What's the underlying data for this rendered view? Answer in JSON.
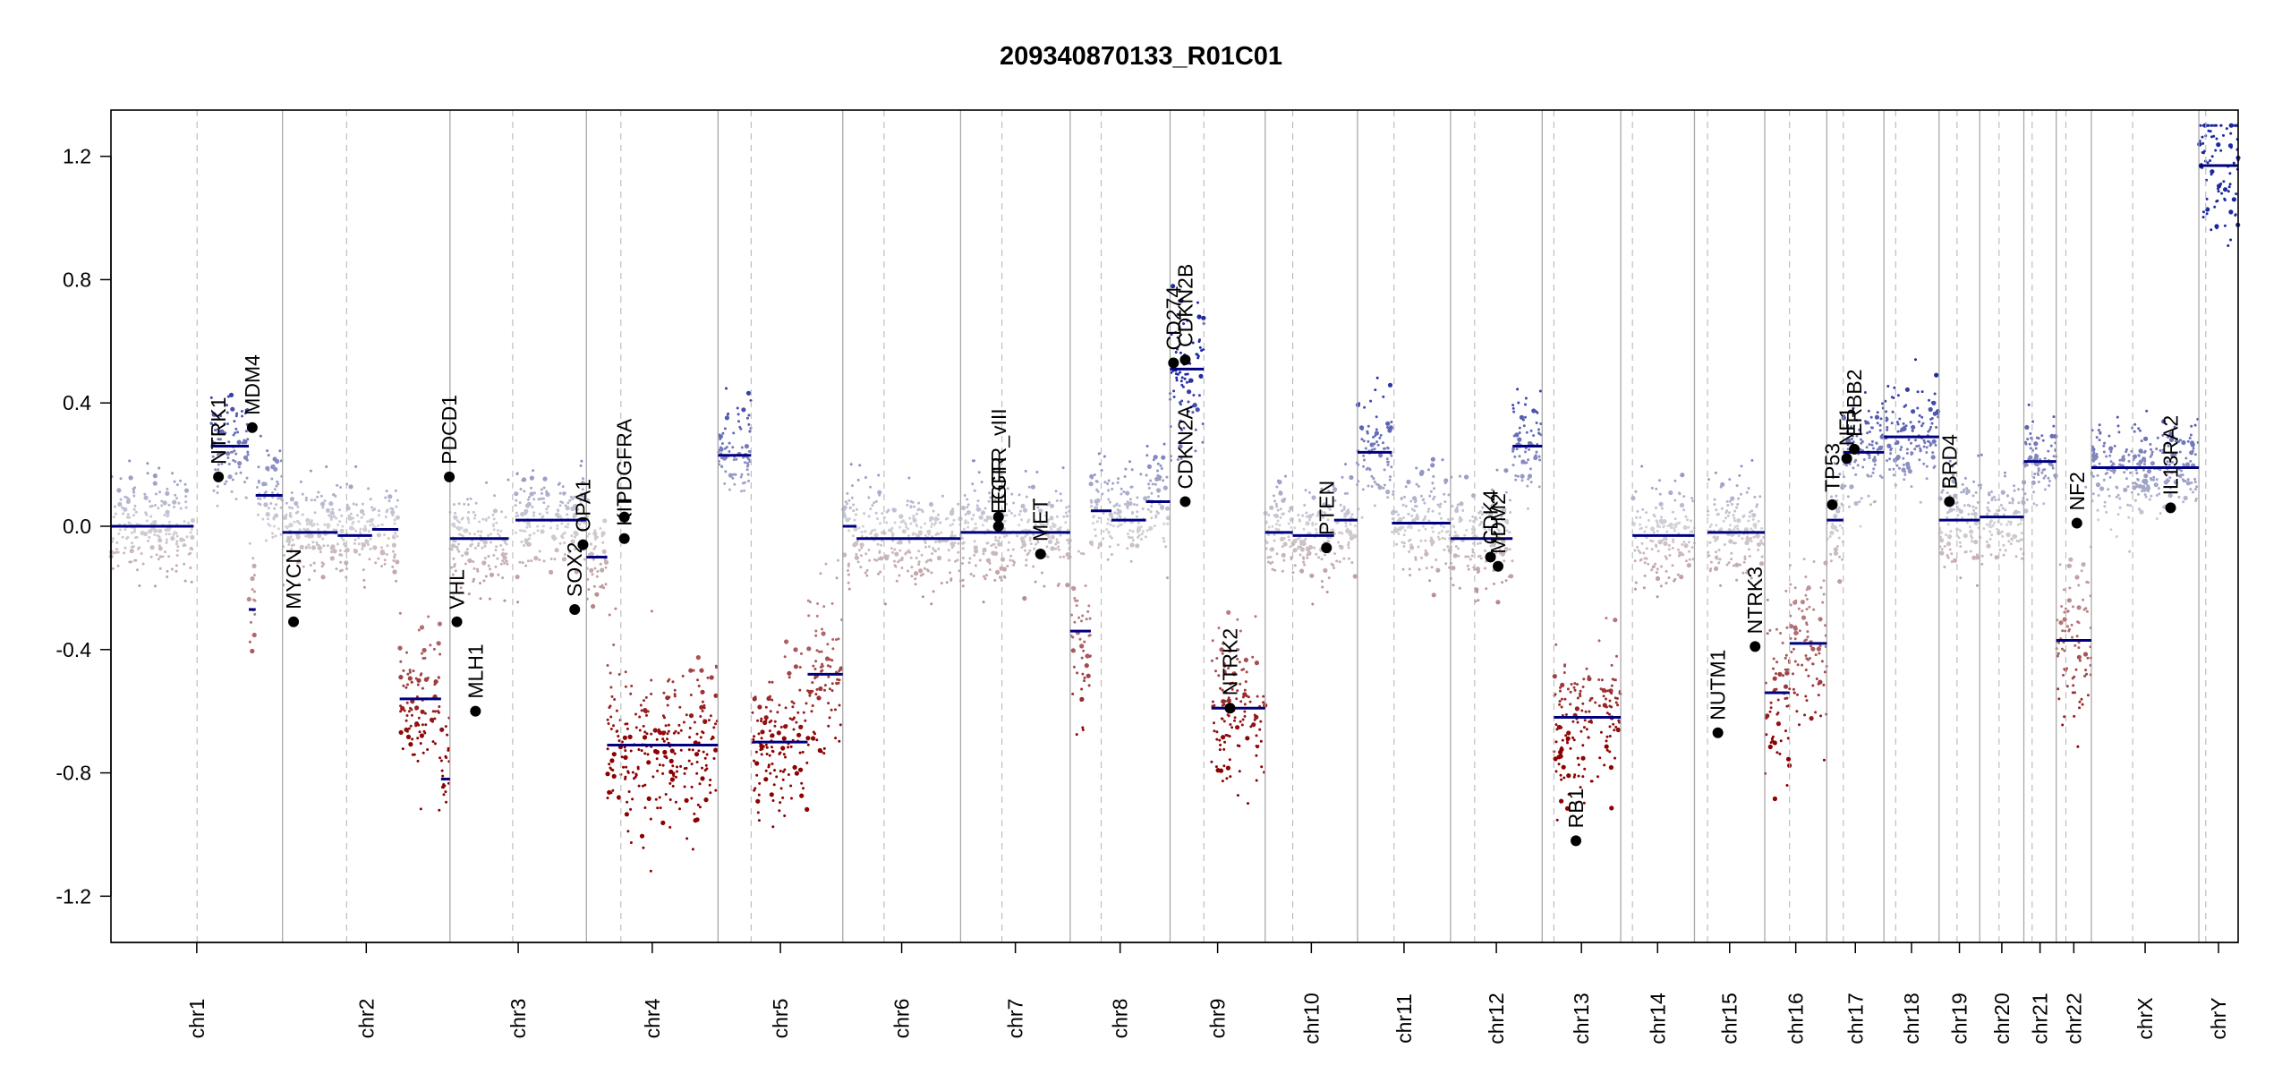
{
  "chart_data": {
    "type": "scatter",
    "title": "209340870133_R01C01",
    "xlabel": "",
    "ylabel": "",
    "ylim": [
      -1.35,
      1.35
    ],
    "y_ticks": [
      {
        "value": 1.2,
        "label": "1.2"
      },
      {
        "value": 0.8,
        "label": "0.8"
      },
      {
        "value": 0.4,
        "label": "0.4"
      },
      {
        "value": 0.0,
        "label": "0.0"
      },
      {
        "value": -0.4,
        "label": "-0.4"
      },
      {
        "value": -0.8,
        "label": "-0.8"
      },
      {
        "value": -1.2,
        "label": "-1.2"
      }
    ],
    "chromosomes": [
      {
        "name": "chr1",
        "length": 249,
        "centromere": 125
      },
      {
        "name": "chr2",
        "length": 243,
        "centromere": 93
      },
      {
        "name": "chr3",
        "length": 198,
        "centromere": 91
      },
      {
        "name": "chr4",
        "length": 191,
        "centromere": 50
      },
      {
        "name": "chr5",
        "length": 181,
        "centromere": 48
      },
      {
        "name": "chr6",
        "length": 171,
        "centromere": 60
      },
      {
        "name": "chr7",
        "length": 159,
        "centromere": 60
      },
      {
        "name": "chr8",
        "length": 145,
        "centromere": 45
      },
      {
        "name": "chr9",
        "length": 138,
        "centromere": 49
      },
      {
        "name": "chr10",
        "length": 134,
        "centromere": 40
      },
      {
        "name": "chr11",
        "length": 135,
        "centromere": 53
      },
      {
        "name": "chr12",
        "length": 133,
        "centromere": 35
      },
      {
        "name": "chr13",
        "length": 114,
        "centromere": 17
      },
      {
        "name": "chr14",
        "length": 107,
        "centromere": 17
      },
      {
        "name": "chr15",
        "length": 102,
        "centromere": 19
      },
      {
        "name": "chr16",
        "length": 90,
        "centromere": 36
      },
      {
        "name": "chr17",
        "length": 83,
        "centromere": 24
      },
      {
        "name": "chr18",
        "length": 80,
        "centromere": 17
      },
      {
        "name": "chr19",
        "length": 59,
        "centromere": 26
      },
      {
        "name": "chr20",
        "length": 64,
        "centromere": 28
      },
      {
        "name": "chr21",
        "length": 47,
        "centromere": 12
      },
      {
        "name": "chr22",
        "length": 51,
        "centromere": 14
      },
      {
        "name": "chrX",
        "length": 156,
        "centromere": 60
      },
      {
        "name": "chrY",
        "length": 57,
        "centromere": 10
      }
    ],
    "segments": [
      {
        "chr": "chr1",
        "start": 0,
        "end": 120,
        "value": 0.0
      },
      {
        "chr": "chr1",
        "start": 145,
        "end": 200,
        "value": 0.26
      },
      {
        "chr": "chr1",
        "start": 200,
        "end": 210,
        "value": -0.27
      },
      {
        "chr": "chr1",
        "start": 210,
        "end": 249,
        "value": 0.1
      },
      {
        "chr": "chr2",
        "start": 0,
        "end": 80,
        "value": -0.02
      },
      {
        "chr": "chr2",
        "start": 80,
        "end": 130,
        "value": -0.03
      },
      {
        "chr": "chr2",
        "start": 130,
        "end": 168,
        "value": -0.01
      },
      {
        "chr": "chr2",
        "start": 170,
        "end": 230,
        "value": -0.56
      },
      {
        "chr": "chr2",
        "start": 230,
        "end": 243,
        "value": -0.82
      },
      {
        "chr": "chr3",
        "start": 0,
        "end": 85,
        "value": -0.04
      },
      {
        "chr": "chr3",
        "start": 95,
        "end": 198,
        "value": 0.02
      },
      {
        "chr": "chr4",
        "start": 0,
        "end": 30,
        "value": -0.1
      },
      {
        "chr": "chr4",
        "start": 30,
        "end": 191,
        "value": -0.71
      },
      {
        "chr": "chr5",
        "start": 0,
        "end": 48,
        "value": 0.23
      },
      {
        "chr": "chr5",
        "start": 50,
        "end": 130,
        "value": -0.7
      },
      {
        "chr": "chr5",
        "start": 130,
        "end": 181,
        "value": -0.48
      },
      {
        "chr": "chr6",
        "start": 0,
        "end": 20,
        "value": 0.0
      },
      {
        "chr": "chr6",
        "start": 20,
        "end": 171,
        "value": -0.04
      },
      {
        "chr": "chr7",
        "start": 0,
        "end": 159,
        "value": -0.02
      },
      {
        "chr": "chr8",
        "start": 0,
        "end": 30,
        "value": -0.34
      },
      {
        "chr": "chr8",
        "start": 30,
        "end": 60,
        "value": 0.05
      },
      {
        "chr": "chr8",
        "start": 60,
        "end": 110,
        "value": 0.02
      },
      {
        "chr": "chr8",
        "start": 110,
        "end": 145,
        "value": 0.08
      },
      {
        "chr": "chr9",
        "start": 0,
        "end": 49,
        "value": 0.51
      },
      {
        "chr": "chr9",
        "start": 60,
        "end": 138,
        "value": -0.59
      },
      {
        "chr": "chr10",
        "start": 0,
        "end": 40,
        "value": -0.02
      },
      {
        "chr": "chr10",
        "start": 40,
        "end": 100,
        "value": -0.03
      },
      {
        "chr": "chr10",
        "start": 100,
        "end": 134,
        "value": 0.02
      },
      {
        "chr": "chr11",
        "start": 0,
        "end": 50,
        "value": 0.24
      },
      {
        "chr": "chr11",
        "start": 50,
        "end": 135,
        "value": 0.01
      },
      {
        "chr": "chr12",
        "start": 0,
        "end": 40,
        "value": -0.04
      },
      {
        "chr": "chr12",
        "start": 40,
        "end": 90,
        "value": -0.04
      },
      {
        "chr": "chr12",
        "start": 90,
        "end": 133,
        "value": 0.26
      },
      {
        "chr": "chr13",
        "start": 17,
        "end": 114,
        "value": -0.62
      },
      {
        "chr": "chr14",
        "start": 17,
        "end": 107,
        "value": -0.03
      },
      {
        "chr": "chr15",
        "start": 19,
        "end": 102,
        "value": -0.02
      },
      {
        "chr": "chr16",
        "start": 0,
        "end": 36,
        "value": -0.54
      },
      {
        "chr": "chr16",
        "start": 36,
        "end": 90,
        "value": -0.38
      },
      {
        "chr": "chr17",
        "start": 0,
        "end": 24,
        "value": 0.02
      },
      {
        "chr": "chr17",
        "start": 24,
        "end": 83,
        "value": 0.24
      },
      {
        "chr": "chr18",
        "start": 0,
        "end": 80,
        "value": 0.29
      },
      {
        "chr": "chr19",
        "start": 0,
        "end": 59,
        "value": 0.02
      },
      {
        "chr": "chr20",
        "start": 0,
        "end": 64,
        "value": 0.03
      },
      {
        "chr": "chr21",
        "start": 0,
        "end": 47,
        "value": 0.21
      },
      {
        "chr": "chr22",
        "start": 0,
        "end": 51,
        "value": -0.37
      },
      {
        "chrX": true,
        "chr": "chrX",
        "start": 0,
        "end": 156,
        "value": 0.19
      },
      {
        "chr": "chrY",
        "start": 0,
        "end": 57,
        "value": 1.17
      }
    ],
    "genes": [
      {
        "name": "NTRK1",
        "chr": "chr1",
        "pos": 156,
        "value": 0.16
      },
      {
        "name": "MDM4",
        "chr": "chr1",
        "pos": 205,
        "value": 0.32
      },
      {
        "name": "MYCN",
        "chr": "chr2",
        "pos": 16,
        "value": -0.31
      },
      {
        "name": "PDCD1",
        "chr": "chr2",
        "pos": 242,
        "value": 0.16
      },
      {
        "name": "VHL",
        "chr": "chr3",
        "pos": 10,
        "value": -0.31
      },
      {
        "name": "MLH1",
        "chr": "chr3",
        "pos": 37,
        "value": -0.6
      },
      {
        "name": "SOX2",
        "chr": "chr3",
        "pos": 181,
        "value": -0.27
      },
      {
        "name": "OPA1",
        "chr": "chr3",
        "pos": 193,
        "value": -0.06
      },
      {
        "name": "KIT",
        "chr": "chr4",
        "pos": 55,
        "value": -0.04
      },
      {
        "name": "PDGFRA",
        "chr": "chr4",
        "pos": 55,
        "value": 0.03
      },
      {
        "name": "EGFR",
        "chr": "chr7",
        "pos": 55,
        "value": 0.0
      },
      {
        "name": "EGFR_vIII",
        "chr": "chr7",
        "pos": 55,
        "value": 0.03
      },
      {
        "name": "MET",
        "chr": "chr7",
        "pos": 116,
        "value": -0.09
      },
      {
        "name": "CD274",
        "chr": "chr9",
        "pos": 5,
        "value": 0.53
      },
      {
        "name": "CDKN2A",
        "chr": "chr9",
        "pos": 22,
        "value": 0.08
      },
      {
        "name": "CDKN2B",
        "chr": "chr9",
        "pos": 22,
        "value": 0.54
      },
      {
        "name": "NTRK2",
        "chr": "chr9",
        "pos": 87,
        "value": -0.59
      },
      {
        "name": "PTEN",
        "chr": "chr10",
        "pos": 89,
        "value": -0.07
      },
      {
        "name": "CDK4",
        "chr": "chr12",
        "pos": 58,
        "value": -0.1
      },
      {
        "name": "MDM2",
        "chr": "chr12",
        "pos": 69,
        "value": -0.13
      },
      {
        "name": "RB1",
        "chr": "chr13",
        "pos": 49,
        "value": -1.02
      },
      {
        "name": "NUTM1",
        "chr": "chr15",
        "pos": 34,
        "value": -0.67
      },
      {
        "name": "NTRK3",
        "chr": "chr15",
        "pos": 88,
        "value": -0.39
      },
      {
        "name": "TP53",
        "chr": "chr17",
        "pos": 8,
        "value": 0.07
      },
      {
        "name": "NF1",
        "chr": "chr17",
        "pos": 29,
        "value": 0.22
      },
      {
        "name": "ERBB2",
        "chr": "chr17",
        "pos": 40,
        "value": 0.25
      },
      {
        "name": "BRD4",
        "chr": "chr19",
        "pos": 15,
        "value": 0.08
      },
      {
        "name": "NF2",
        "chr": "chr22",
        "pos": 30,
        "value": 0.01
      },
      {
        "name": "IL13RA2",
        "chr": "chrX",
        "pos": 115,
        "value": 0.06
      }
    ]
  }
}
